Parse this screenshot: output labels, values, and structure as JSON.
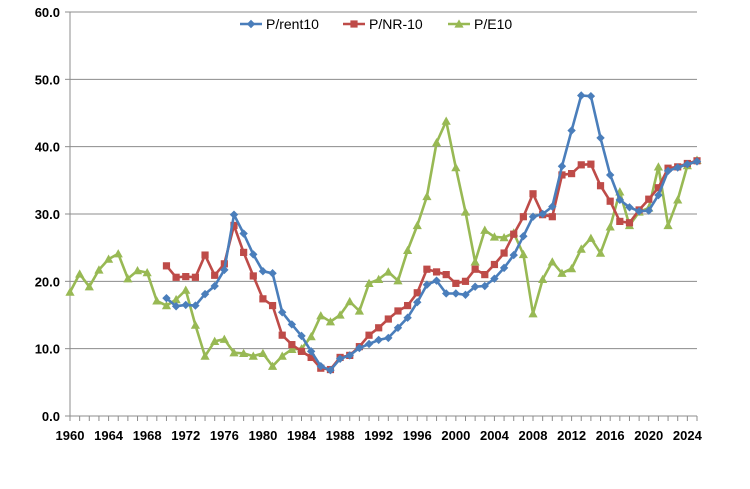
{
  "chart_data": {
    "type": "line",
    "title": "",
    "xlabel": "",
    "ylabel": "",
    "xlim": [
      1960,
      2025
    ],
    "ylim": [
      0,
      60
    ],
    "grid": "horizontal",
    "legend": "top-center",
    "x_ticks": [
      "1960",
      "1964",
      "1968",
      "1972",
      "1976",
      "1980",
      "1984",
      "1988",
      "1992",
      "1996",
      "2000",
      "2004",
      "2008",
      "2012",
      "2016",
      "2020",
      "2024"
    ],
    "y_ticks": [
      "0.0",
      "10.0",
      "20.0",
      "30.0",
      "40.0",
      "50.0",
      "60.0"
    ],
    "series": [
      {
        "name": "P/rent10",
        "color": "#4a7ebb",
        "marker": "diamond",
        "x": [
          1970,
          1971,
          1972,
          1973,
          1974,
          1975,
          1976,
          1977,
          1978,
          1979,
          1980,
          1981,
          1982,
          1983,
          1984,
          1985,
          1986,
          1987,
          1988,
          1989,
          1990,
          1991,
          1992,
          1993,
          1994,
          1995,
          1996,
          1997,
          1998,
          1999,
          2000,
          2001,
          2002,
          2003,
          2004,
          2005,
          2006,
          2007,
          2008,
          2009,
          2010,
          2011,
          2012,
          2013,
          2014,
          2015,
          2016,
          2017,
          2018,
          2019,
          2020,
          2021,
          2022,
          2023,
          2024,
          2025
        ],
        "y": [
          17.5,
          16.3,
          16.5,
          16.4,
          18.1,
          19.3,
          21.7,
          29.9,
          27.1,
          24.0,
          21.5,
          21.2,
          15.4,
          13.6,
          11.9,
          9.6,
          7.4,
          6.8,
          8.5,
          9.0,
          10.1,
          10.7,
          11.3,
          11.6,
          13.1,
          14.6,
          16.9,
          19.5,
          20.1,
          18.2,
          18.2,
          18.0,
          19.2,
          19.3,
          20.4,
          22.0,
          23.9,
          26.7,
          29.6,
          30.0,
          31.1,
          37.1,
          42.4,
          47.6,
          47.5,
          41.3,
          35.8,
          32.1,
          31.0,
          30.4,
          30.5,
          32.8,
          36.4,
          36.9,
          37.4,
          37.8
        ]
      },
      {
        "name": "P/NR-10",
        "color": "#be4b48",
        "marker": "square",
        "x": [
          1970,
          1971,
          1972,
          1973,
          1974,
          1975,
          1976,
          1977,
          1978,
          1979,
          1980,
          1981,
          1982,
          1983,
          1984,
          1985,
          1986,
          1987,
          1988,
          1989,
          1990,
          1991,
          1992,
          1993,
          1994,
          1995,
          1996,
          1997,
          1998,
          1999,
          2000,
          2001,
          2002,
          2003,
          2004,
          2005,
          2006,
          2007,
          2008,
          2009,
          2010,
          2011,
          2012,
          2013,
          2014,
          2015,
          2016,
          2017,
          2018,
          2019,
          2020,
          2021,
          2022,
          2023,
          2024,
          2025
        ],
        "y": [
          22.3,
          20.6,
          20.7,
          20.6,
          23.9,
          20.9,
          22.6,
          28.3,
          24.3,
          20.8,
          17.4,
          16.4,
          12.0,
          10.6,
          9.6,
          8.7,
          7.1,
          6.9,
          8.7,
          9.0,
          10.3,
          12.0,
          13.1,
          14.4,
          15.6,
          16.4,
          18.3,
          21.8,
          21.4,
          21.0,
          19.7,
          20.0,
          21.8,
          21.0,
          22.5,
          24.2,
          27.0,
          29.6,
          33.0,
          29.9,
          29.6,
          35.8,
          36.0,
          37.3,
          37.4,
          34.2,
          31.9,
          28.9,
          28.7,
          30.6,
          32.2,
          33.9,
          36.8,
          37.0,
          37.5,
          37.9
        ]
      },
      {
        "name": "P/E10",
        "color": "#98b954",
        "marker": "triangle",
        "x": [
          1960,
          1961,
          1962,
          1963,
          1964,
          1965,
          1966,
          1967,
          1968,
          1969,
          1970,
          1971,
          1972,
          1973,
          1974,
          1975,
          1976,
          1977,
          1978,
          1979,
          1980,
          1981,
          1982,
          1983,
          1984,
          1985,
          1986,
          1987,
          1988,
          1989,
          1990,
          1991,
          1992,
          1993,
          1994,
          1995,
          1996,
          1997,
          1998,
          1999,
          2000,
          2001,
          2002,
          2003,
          2004,
          2005,
          2006,
          2007,
          2008,
          2009,
          2010,
          2011,
          2012,
          2013,
          2014,
          2015,
          2016,
          2017,
          2018,
          2019,
          2020,
          2021,
          2022,
          2023,
          2024,
          2025
        ],
        "y": [
          18.4,
          21.1,
          19.2,
          21.7,
          23.3,
          24.1,
          20.4,
          21.6,
          21.3,
          17.1,
          16.4,
          17.3,
          18.7,
          13.5,
          8.9,
          11.1,
          11.4,
          9.4,
          9.3,
          8.9,
          9.3,
          7.4,
          8.9,
          9.9,
          10.0,
          11.8,
          14.9,
          14.0,
          15.0,
          17.0,
          15.6,
          19.7,
          20.3,
          21.4,
          20.1,
          24.6,
          28.3,
          32.6,
          40.6,
          43.8,
          36.9,
          30.3,
          22.9,
          27.6,
          26.6,
          26.5,
          27.2,
          24.0,
          15.2,
          20.3,
          22.9,
          21.2,
          21.9,
          24.8,
          26.4,
          24.2,
          28.1,
          33.3,
          28.3,
          30.3,
          30.9,
          37.0,
          28.3,
          32.1,
          37.2,
          38.0
        ]
      }
    ]
  }
}
